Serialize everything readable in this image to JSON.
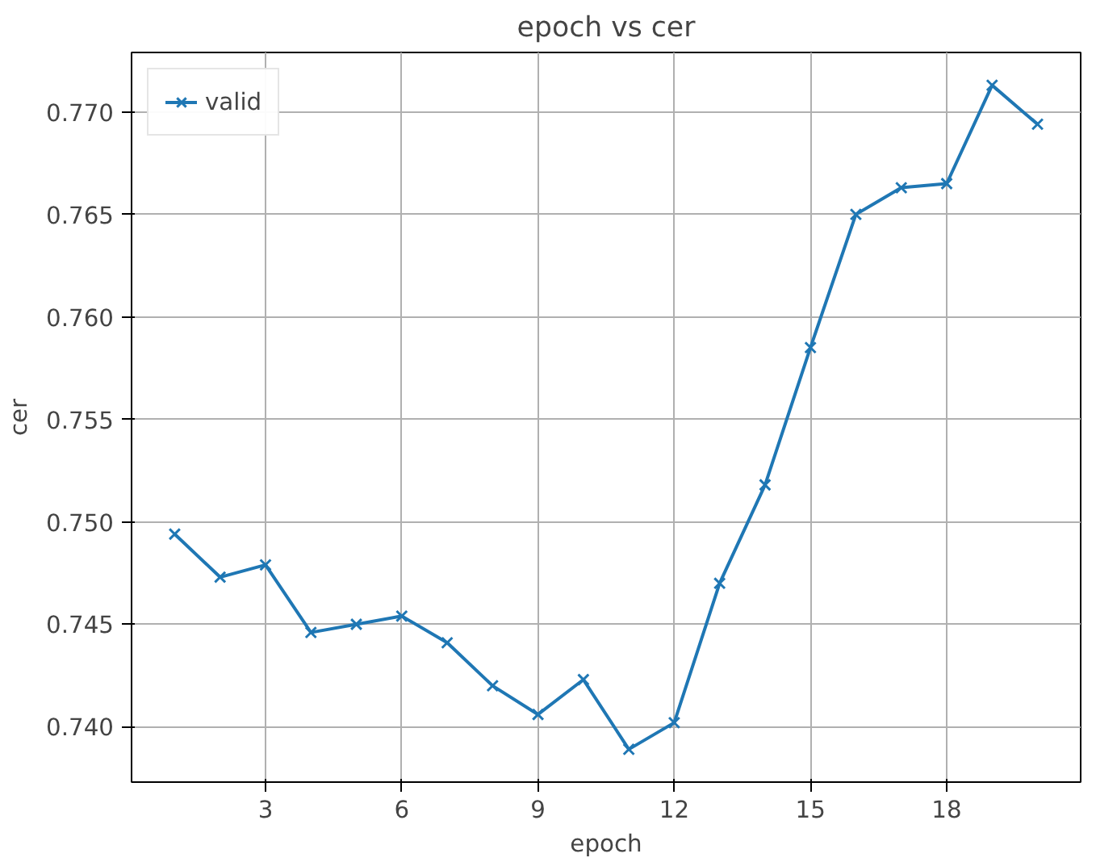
{
  "chart_data": {
    "type": "line",
    "title": "epoch vs cer",
    "xlabel": "epoch",
    "ylabel": "cer",
    "x": [
      1,
      2,
      3,
      4,
      5,
      6,
      7,
      8,
      9,
      10,
      11,
      12,
      13,
      14,
      15,
      16,
      17,
      18,
      19,
      20
    ],
    "series": [
      {
        "name": "valid",
        "color": "#1f77b4",
        "values": [
          0.7494,
          0.7473,
          0.7479,
          0.7446,
          0.745,
          0.7454,
          0.7441,
          0.742,
          0.7406,
          0.7423,
          0.7389,
          0.7402,
          0.747,
          0.7518,
          0.7585,
          0.765,
          0.7663,
          0.7665,
          0.7713,
          0.7694
        ]
      }
    ],
    "xlim": [
      0.05,
      20.95
    ],
    "ylim": [
      0.7373,
      0.7729
    ],
    "xticks": [
      3,
      6,
      9,
      12,
      15,
      18
    ],
    "yticks": [
      {
        "value": 0.74,
        "label": "0.740"
      },
      {
        "value": 0.745,
        "label": "0.745"
      },
      {
        "value": 0.75,
        "label": "0.750"
      },
      {
        "value": 0.755,
        "label": "0.755"
      },
      {
        "value": 0.76,
        "label": "0.760"
      },
      {
        "value": 0.765,
        "label": "0.765"
      },
      {
        "value": 0.77,
        "label": "0.770"
      }
    ],
    "grid": true,
    "legend": "top left",
    "marker": "cross",
    "line_style": "solid"
  }
}
